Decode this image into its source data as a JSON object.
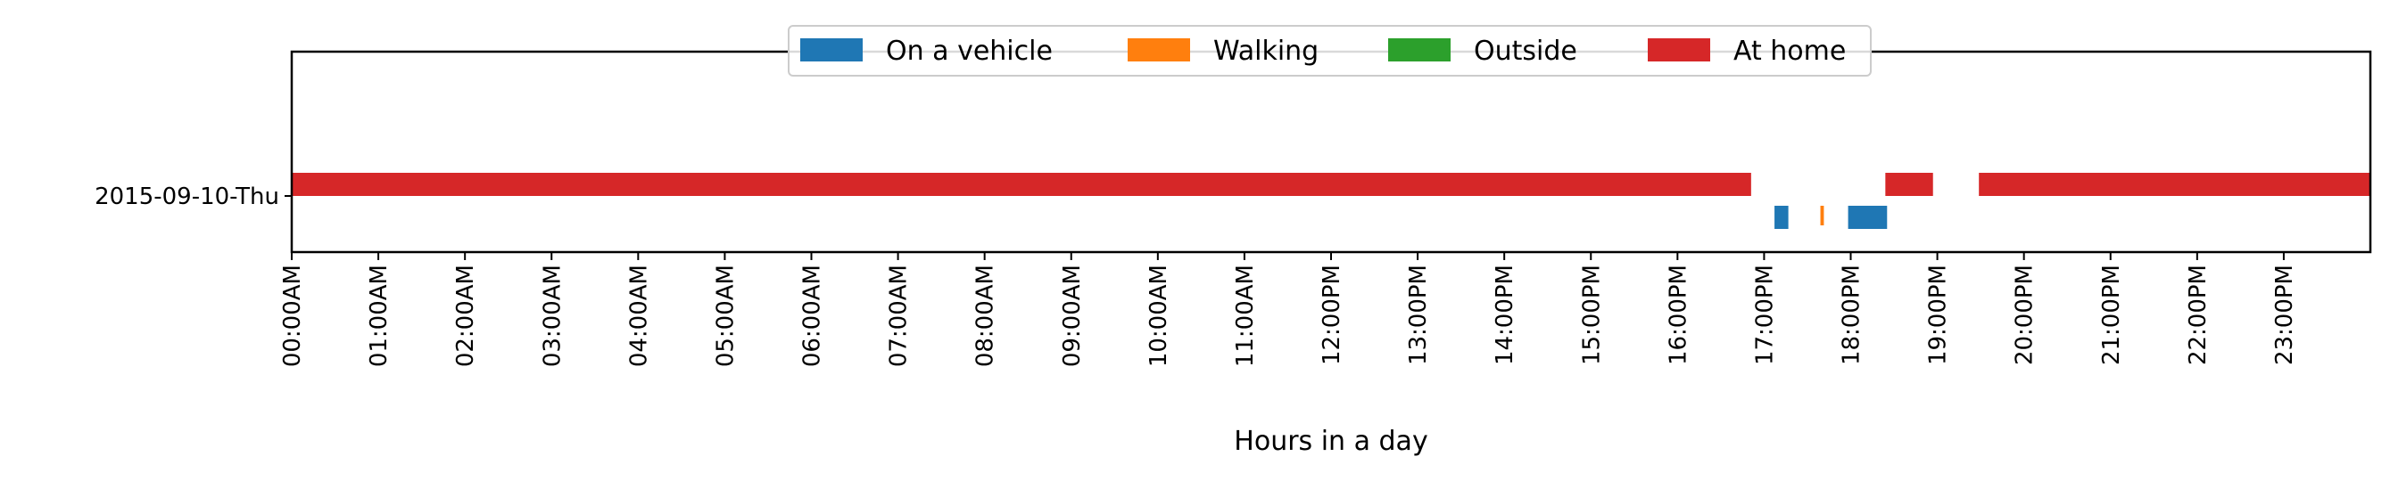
{
  "chart_data": {
    "type": "timeline",
    "title": "",
    "xlabel": "Hours in a day",
    "ylabel": "",
    "xlim": [
      0,
      24
    ],
    "x_unit": "hours",
    "x_ticks": [
      0,
      1,
      2,
      3,
      4,
      5,
      6,
      7,
      8,
      9,
      10,
      11,
      12,
      13,
      14,
      15,
      16,
      17,
      18,
      19,
      20,
      21,
      22,
      23
    ],
    "x_tick_labels": [
      "00:00AM",
      "01:00AM",
      "02:00AM",
      "03:00AM",
      "04:00AM",
      "05:00AM",
      "06:00AM",
      "07:00AM",
      "08:00AM",
      "09:00AM",
      "10:00AM",
      "11:00AM",
      "12:00PM",
      "13:00PM",
      "14:00PM",
      "15:00PM",
      "16:00PM",
      "17:00PM",
      "18:00PM",
      "19:00PM",
      "20:00PM",
      "21:00PM",
      "22:00PM",
      "23:00PM"
    ],
    "categories": [
      "2015-09-10-Thu"
    ],
    "legend": {
      "placement": "top-center",
      "columns": 4
    },
    "grid": false,
    "series": [
      {
        "name": "On a vehicle",
        "color": "#1f77b4",
        "row": "2015-09-10-Thu",
        "intervals": [
          [
            17.12,
            17.28
          ],
          [
            17.97,
            18.42
          ]
        ]
      },
      {
        "name": "Walking",
        "color": "#ff7f0e",
        "row": "2015-09-10-Thu",
        "intervals": [
          [
            17.65,
            17.69
          ]
        ]
      },
      {
        "name": "Outside",
        "color": "#2ca02c",
        "row": "2015-09-10-Thu",
        "intervals": []
      },
      {
        "name": "At home",
        "color": "#d62728",
        "row": "2015-09-10-Thu",
        "intervals": [
          [
            0,
            16.85
          ],
          [
            18.4,
            18.95
          ],
          [
            19.48,
            24
          ]
        ]
      }
    ]
  }
}
